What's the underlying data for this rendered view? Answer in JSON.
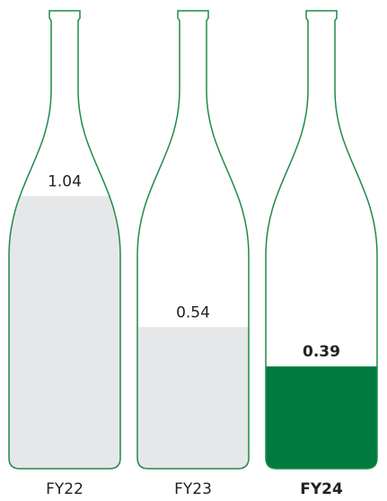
{
  "chart_data": {
    "type": "bottle",
    "categories": [
      "FY22",
      "FY23",
      "FY24"
    ],
    "values": [
      1.04,
      0.54,
      0.39
    ],
    "colors": [
      "#e6e7e8",
      "#e6e7e8",
      "#007a3d"
    ],
    "highlight": [
      false,
      false,
      true
    ],
    "outline_color": "#1e8a4a"
  }
}
